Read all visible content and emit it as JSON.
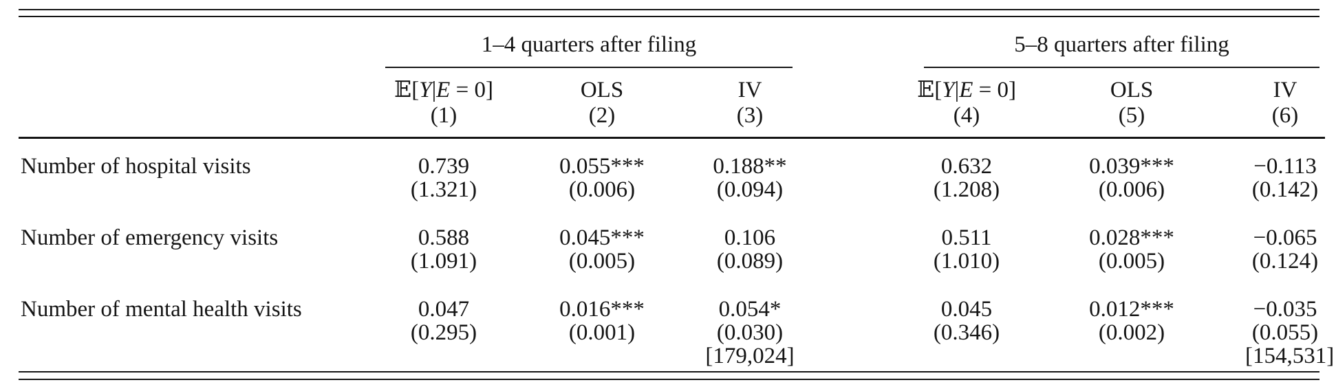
{
  "colors": {
    "background": "#ffffff",
    "text": "#151515",
    "rule": "#151515"
  },
  "table": {
    "groups": [
      {
        "title": "1–4 quarters after filing"
      },
      {
        "title": "5–8 quarters after filing"
      }
    ],
    "columns": [
      {
        "label": "𝔼[Y|E = 0]",
        "number": "(1)"
      },
      {
        "label": "OLS",
        "number": "(2)"
      },
      {
        "label": "IV",
        "number": "(3)"
      },
      {
        "label": "𝔼[Y|E = 0]",
        "number": "(4)"
      },
      {
        "label": "OLS",
        "number": "(5)"
      },
      {
        "label": "IV",
        "number": "(6)"
      }
    ],
    "rows": [
      {
        "label": "Number of hospital visits",
        "cells": [
          {
            "est": "0.739",
            "se": "(1.321)"
          },
          {
            "est": "0.055***",
            "se": "(0.006)"
          },
          {
            "est": "0.188**",
            "se": "(0.094)"
          },
          {
            "est": "0.632",
            "se": "(1.208)"
          },
          {
            "est": "0.039***",
            "se": "(0.006)"
          },
          {
            "est": "−0.113",
            "se": "(0.142)"
          }
        ]
      },
      {
        "label": "Number of emergency visits",
        "cells": [
          {
            "est": "0.588",
            "se": "(1.091)"
          },
          {
            "est": "0.045***",
            "se": "(0.005)"
          },
          {
            "est": "0.106",
            "se": "(0.089)"
          },
          {
            "est": "0.511",
            "se": "(1.010)"
          },
          {
            "est": "0.028***",
            "se": "(0.005)"
          },
          {
            "est": "−0.065",
            "se": "(0.124)"
          }
        ]
      },
      {
        "label": "Number of mental health visits",
        "cells": [
          {
            "est": "0.047",
            "se": "(0.295)"
          },
          {
            "est": "0.016***",
            "se": "(0.001)"
          },
          {
            "est": "0.054*",
            "se": "(0.030)"
          },
          {
            "est": "0.045",
            "se": "(0.346)"
          },
          {
            "est": "0.012***",
            "se": "(0.002)"
          },
          {
            "est": "−0.035",
            "se": "(0.055)"
          }
        ]
      }
    ],
    "sample_sizes": {
      "iv_1_4": "[179,024]",
      "iv_5_8": "[154,531]"
    }
  }
}
